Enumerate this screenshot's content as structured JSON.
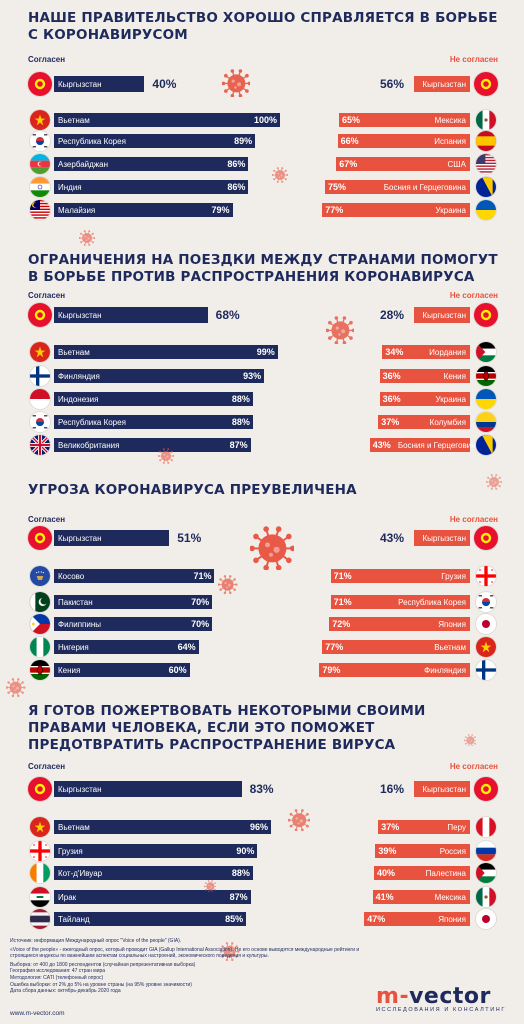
{
  "colors": {
    "agree": "#1e2a5c",
    "disagree": "#e8533f",
    "background": "#f1ede9",
    "title": "#1e2a5c"
  },
  "labels": {
    "agree": "Согласен",
    "disagree": "Не согласен"
  },
  "chart_data": [
    {
      "type": "bar",
      "title": "НАШЕ ПРАВИТЕЛЬСТВО ХОРОШО СПРАВЛЯЕТСЯ В БОРЬБЕ С КОРОНАВИРУСОМ",
      "kg": {
        "country": "Кыргызстан",
        "agree": 40,
        "disagree": 56
      },
      "agree": [
        {
          "country": "Вьетнам",
          "value": 100,
          "flag": "vn"
        },
        {
          "country": "Республика Корея",
          "value": 89,
          "flag": "kr"
        },
        {
          "country": "Азербайджан",
          "value": 86,
          "flag": "az"
        },
        {
          "country": "Индия",
          "value": 86,
          "flag": "in"
        },
        {
          "country": "Малайзия",
          "value": 79,
          "flag": "my"
        }
      ],
      "disagree": [
        {
          "country": "Мексика",
          "value": 65,
          "flag": "mx"
        },
        {
          "country": "Испания",
          "value": 66,
          "flag": "es"
        },
        {
          "country": "США",
          "value": 67,
          "flag": "us"
        },
        {
          "country": "Босния и Герцеговина",
          "value": 75,
          "flag": "ba"
        },
        {
          "country": "Украина",
          "value": 77,
          "flag": "ua"
        }
      ]
    },
    {
      "type": "bar",
      "title": "ОГРАНИЧЕНИЯ НА ПОЕЗДКИ МЕЖДУ СТРАНАМИ ПОМОГУТ В БОРЬБЕ ПРОТИВ РАСПРОСТРАНЕНИЯ КОРОНАВИРУСА",
      "kg": {
        "country": "Кыргызстан",
        "agree": 68,
        "disagree": 28
      },
      "agree": [
        {
          "country": "Вьетнам",
          "value": 99,
          "flag": "vn"
        },
        {
          "country": "Финляндия",
          "value": 93,
          "flag": "fi"
        },
        {
          "country": "Индонезия",
          "value": 88,
          "flag": "id"
        },
        {
          "country": "Республика Корея",
          "value": 88,
          "flag": "kr"
        },
        {
          "country": "Великобритания",
          "value": 87,
          "flag": "gb"
        }
      ],
      "disagree": [
        {
          "country": "Иордания",
          "value": 34,
          "flag": "jo"
        },
        {
          "country": "Кения",
          "value": 36,
          "flag": "ke"
        },
        {
          "country": "Украина",
          "value": 36,
          "flag": "ua"
        },
        {
          "country": "Колумбия",
          "value": 37,
          "flag": "co"
        },
        {
          "country": "Босния и Герцеговина",
          "value": 43,
          "flag": "ba"
        }
      ]
    },
    {
      "type": "bar",
      "title": "УГРОЗА КОРОНАВИРУСА ПРЕУВЕЛИЧЕНА",
      "kg": {
        "country": "Кыргызстан",
        "agree": 51,
        "disagree": 43
      },
      "agree": [
        {
          "country": "Косово",
          "value": 71,
          "flag": "xk"
        },
        {
          "country": "Пакистан",
          "value": 70,
          "flag": "pk"
        },
        {
          "country": "Филиппины",
          "value": 70,
          "flag": "ph"
        },
        {
          "country": "Нигерия",
          "value": 64,
          "flag": "ng"
        },
        {
          "country": "Кения",
          "value": 60,
          "flag": "ke"
        }
      ],
      "disagree": [
        {
          "country": "Грузия",
          "value": 71,
          "flag": "ge"
        },
        {
          "country": "Республика Корея",
          "value": 71,
          "flag": "kr"
        },
        {
          "country": "Япония",
          "value": 72,
          "flag": "jp"
        },
        {
          "country": "Вьетнам",
          "value": 77,
          "flag": "vn"
        },
        {
          "country": "Финляндия",
          "value": 79,
          "flag": "fi"
        }
      ]
    },
    {
      "type": "bar",
      "title": "Я ГОТОВ ПОЖЕРТВОВАТЬ НЕКОТОРЫМИ СВОИМИ ПРАВАМИ ЧЕЛОВЕКА, ЕСЛИ ЭТО ПОМОЖЕТ ПРЕДОТВРАТИТЬ РАСПРОСТРАНЕНИЕ ВИРУСА",
      "kg": {
        "country": "Кыргызстан",
        "agree": 83,
        "disagree": 16
      },
      "agree": [
        {
          "country": "Вьетнам",
          "value": 96,
          "flag": "vn"
        },
        {
          "country": "Грузия",
          "value": 90,
          "flag": "ge"
        },
        {
          "country": "Кот-д'Ивуар",
          "value": 88,
          "flag": "ci"
        },
        {
          "country": "Ирак",
          "value": 87,
          "flag": "iq"
        },
        {
          "country": "Тайланд",
          "value": 85,
          "flag": "th"
        }
      ],
      "disagree": [
        {
          "country": "Перу",
          "value": 37,
          "flag": "pe"
        },
        {
          "country": "Россия",
          "value": 39,
          "flag": "ru"
        },
        {
          "country": "Палестина",
          "value": 40,
          "flag": "ps"
        },
        {
          "country": "Мексика",
          "value": 41,
          "flag": "mx"
        },
        {
          "country": "Япония",
          "value": 47,
          "flag": "jp"
        }
      ]
    }
  ],
  "footer": {
    "lines": [
      "Источник: информация Международный опрос \"Voice of the people\" (GIA).",
      "«Voice of the people» - ежегодный опрос, который проводит GIA (Gallup International Association). Не его основе выводятся международные рейтинги и строящиеся индексы по важнейшим аспектам социальных настроений, экономического поведения и культуры.",
      "Выборка: от 400 до 1800 респондентов (случайная репрезентативная выборка)",
      "География исследования: 47 стран мира",
      "Методология: CATI (телефонный опрос)",
      "Ошибка выборки: от 2% до 5% на уровне страны (на 95% уровне значимости)",
      "Дата сбора данных: октябрь-декабрь 2020 года"
    ],
    "site": "www.m-vector.com"
  },
  "logo": {
    "prefix": "m",
    "sep": "-",
    "word": "vector",
    "tagline": "ИССЛЕДОВАНИЯ И КОНСАЛТИНГ"
  },
  "icons": {
    "virus": "coronavirus-icon"
  }
}
